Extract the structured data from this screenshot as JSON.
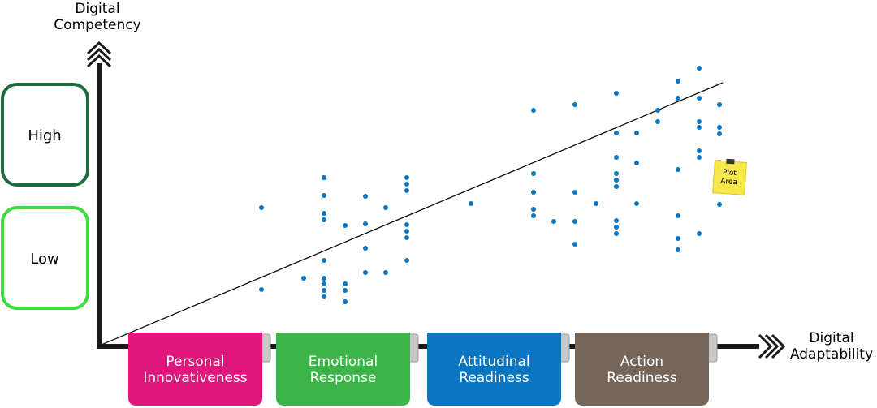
{
  "y_axis": {
    "label_lines": [
      "Digital",
      "Competency"
    ],
    "levels": [
      {
        "text": "High",
        "color": "#1e6b3c"
      },
      {
        "text": "Low",
        "color": "#3ddc3d"
      }
    ]
  },
  "x_axis": {
    "label_lines": [
      "Digital",
      "Adaptability"
    ],
    "stages": [
      {
        "lines": [
          "Personal",
          "Innovativeness"
        ],
        "color": "#e0177c"
      },
      {
        "lines": [
          "Emotional",
          "Response"
        ],
        "color": "#3cb44a"
      },
      {
        "lines": [
          "Attitudinal",
          "Readiness"
        ],
        "color": "#0a76c2"
      },
      {
        "lines": [
          "Action",
          "Readiness"
        ],
        "color": "#76665a"
      }
    ]
  },
  "note": {
    "lines": [
      "Plot",
      "Area"
    ]
  }
}
